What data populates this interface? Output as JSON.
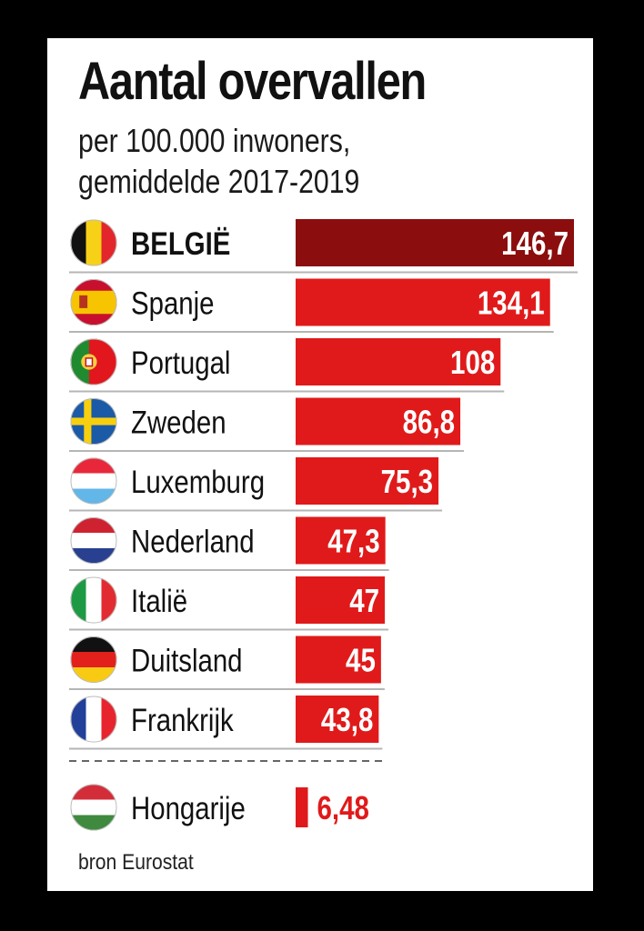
{
  "header": {
    "title": "Aantal overvallen",
    "subtitle_line1": "per 100.000 inwoners,",
    "subtitle_line2": "gemiddelde 2017-2019"
  },
  "source": "bron Eurostat",
  "colors": {
    "highlight_bar": "#8b0d0d",
    "bar": "#e01a1a",
    "separator": "#b5b5b5"
  },
  "chart_data": {
    "type": "bar",
    "orientation": "horizontal",
    "title": "Aantal overvallen",
    "subtitle": "per 100.000 inwoners, gemiddelde 2017-2019",
    "source": "bron Eurostat",
    "xlim": [
      0,
      146.7
    ],
    "categories": [
      "BELGIË",
      "Spanje",
      "Portugal",
      "Zweden",
      "Luxemburg",
      "Nederland",
      "Italië",
      "Duitsland",
      "Frankrijk",
      "Hongarije"
    ],
    "values": [
      146.7,
      134.1,
      108,
      86.8,
      75.3,
      47.3,
      47,
      45,
      43.8,
      6.48
    ],
    "value_labels": [
      "146,7",
      "134,1",
      "108",
      "86,8",
      "75,3",
      "47,3",
      "47",
      "45",
      "43,8",
      "6,48"
    ],
    "flags": [
      "belgium-flag-icon",
      "spain-flag-icon",
      "portugal-flag-icon",
      "sweden-flag-icon",
      "luxembourg-flag-icon",
      "netherlands-flag-icon",
      "italy-flag-icon",
      "germany-flag-icon",
      "france-flag-icon",
      "hungary-flag-icon"
    ],
    "highlight": "BELGIË",
    "separated": [
      "Hongarije"
    ]
  }
}
